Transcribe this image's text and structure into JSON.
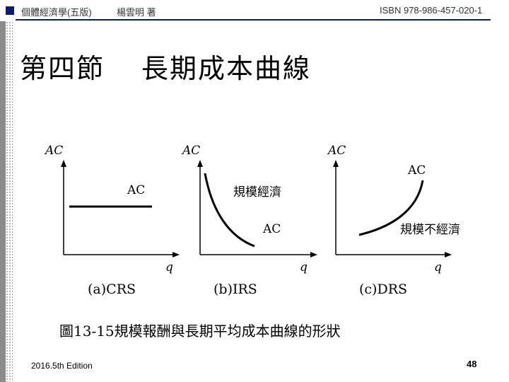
{
  "header": {
    "left_title": "個體經濟學(五版)",
    "author": "楊雲明 著",
    "isbn": "ISBN 978-986-457-020-1"
  },
  "slide": {
    "section": "第四節",
    "title": "長期成本曲線"
  },
  "panels": [
    {
      "y_axis_label": "AC",
      "x_axis_label": "q",
      "curve_label": "AC",
      "caption": "(a)CRS"
    },
    {
      "y_axis_label": "AC",
      "x_axis_label": "q",
      "curve_label": "AC",
      "annotation": "規模經濟",
      "caption": "(b)IRS"
    },
    {
      "y_axis_label": "AC",
      "x_axis_label": "q",
      "curve_label": "AC",
      "annotation": "規模不經濟",
      "caption": "(c)DRS"
    }
  ],
  "figure_caption": "圖13-15規模報酬與長期平均成本曲線的形狀",
  "footer": {
    "edition": "2016.5th Edition",
    "page_number": "48"
  },
  "colors": {
    "header_accent": "#0b1d6b",
    "sidebar": "#8c8c8c"
  }
}
